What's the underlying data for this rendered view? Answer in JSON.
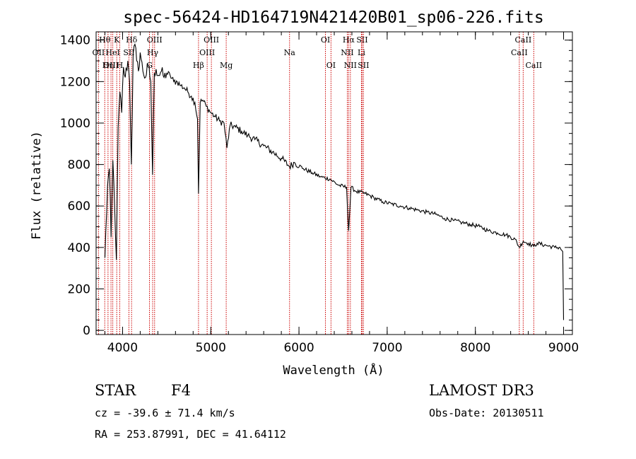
{
  "chart_data": {
    "type": "line",
    "title": "spec-56424-HD164719N421420B01_sp06-226.fits",
    "xlabel": "Wavelength (Å)",
    "ylabel": "Flux (relative)",
    "xlim": [
      3700,
      9100
    ],
    "ylim": [
      -20,
      1440
    ],
    "x_ticks": [
      4000,
      5000,
      6000,
      7000,
      8000,
      9000
    ],
    "y_ticks": [
      0,
      200,
      400,
      600,
      800,
      1000,
      1200,
      1400
    ],
    "x_minor_step": 200,
    "y_minor_step": 50,
    "series": [
      {
        "name": "flux",
        "x": [
          3800,
          3830,
          3850,
          3870,
          3890,
          3910,
          3930,
          3950,
          3970,
          3990,
          4010,
          4030,
          4060,
          4080,
          4100,
          4120,
          4140,
          4160,
          4180,
          4200,
          4230,
          4260,
          4290,
          4320,
          4340,
          4360,
          4380,
          4410,
          4440,
          4470,
          4500,
          4540,
          4580,
          4620,
          4660,
          4700,
          4740,
          4780,
          4820,
          4850,
          4861,
          4880,
          4910,
          4950,
          5000,
          5050,
          5100,
          5150,
          5183,
          5220,
          5280,
          5350,
          5420,
          5500,
          5600,
          5700,
          5800,
          5893,
          5950,
          6050,
          6150,
          6250,
          6350,
          6450,
          6540,
          6563,
          6590,
          6650,
          6750,
          6850,
          6950,
          7050,
          7150,
          7250,
          7350,
          7450,
          7550,
          7650,
          7750,
          7850,
          7950,
          8050,
          8150,
          8250,
          8350,
          8450,
          8498,
          8542,
          8600,
          8662,
          8700,
          8800,
          8900,
          8960,
          8990,
          9000
        ],
        "y": [
          350,
          700,
          780,
          450,
          820,
          600,
          340,
          980,
          1150,
          1050,
          1270,
          1220,
          1300,
          1200,
          800,
          1330,
          1380,
          1300,
          1250,
          1340,
          1250,
          1220,
          1280,
          1200,
          750,
          1240,
          1260,
          1230,
          1250,
          1220,
          1240,
          1230,
          1200,
          1200,
          1180,
          1170,
          1150,
          1130,
          1100,
          1020,
          660,
          1100,
          1110,
          1080,
          1050,
          1030,
          1010,
          1000,
          880,
          990,
          980,
          960,
          940,
          920,
          890,
          860,
          830,
          790,
          810,
          780,
          760,
          740,
          730,
          700,
          690,
          480,
          690,
          670,
          660,
          640,
          620,
          610,
          600,
          590,
          580,
          570,
          560,
          540,
          530,
          520,
          510,
          500,
          480,
          470,
          460,
          440,
          400,
          430,
          420,
          405,
          420,
          410,
          400,
          400,
          380,
          50
        ]
      }
    ],
    "lines": [
      {
        "name": "Hθ",
        "wavelength": 3798,
        "row": 0
      },
      {
        "name": "OII",
        "wavelength": 3727,
        "row": 1
      },
      {
        "name": "OIII",
        "wavelength": 3869,
        "row": 2
      },
      {
        "name": "Hη",
        "wavelength": 3835,
        "row": 2
      },
      {
        "name": "HeI",
        "wavelength": 3889,
        "row": 1
      },
      {
        "name": "K",
        "wavelength": 3934,
        "row": 0
      },
      {
        "name": "H",
        "wavelength": 3968,
        "row": 2
      },
      {
        "name": "SII",
        "wavelength": 4072,
        "row": 1
      },
      {
        "name": "Hδ",
        "wavelength": 4102,
        "row": 0
      },
      {
        "name": "G",
        "wavelength": 4305,
        "row": 2
      },
      {
        "name": "OIII",
        "wavelength": 4363,
        "row": 0
      },
      {
        "name": "Hγ",
        "wavelength": 4341,
        "row": 1
      },
      {
        "name": "Hβ",
        "wavelength": 4861,
        "row": 2
      },
      {
        "name": "OIII",
        "wavelength": 4959,
        "row": 1
      },
      {
        "name": "OIII",
        "wavelength": 5007,
        "row": 0
      },
      {
        "name": "Mg",
        "wavelength": 5175,
        "row": 2
      },
      {
        "name": "Na",
        "wavelength": 5893,
        "row": 1
      },
      {
        "name": "OI",
        "wavelength": 6300,
        "row": 0
      },
      {
        "name": "OI",
        "wavelength": 6363,
        "row": 2
      },
      {
        "name": "Hα",
        "wavelength": 6563,
        "row": 0
      },
      {
        "name": "NII",
        "wavelength": 6548,
        "row": 1
      },
      {
        "name": "NII",
        "wavelength": 6583,
        "row": 2
      },
      {
        "name": "SII",
        "wavelength": 6716,
        "row": 0
      },
      {
        "name": "Li",
        "wavelength": 6708,
        "row": 1
      },
      {
        "name": "SII",
        "wavelength": 6731,
        "row": 2
      },
      {
        "name": "CaII",
        "wavelength": 8542,
        "row": 0
      },
      {
        "name": "CaII",
        "wavelength": 8498,
        "row": 1
      },
      {
        "name": "CaII",
        "wavelength": 8662,
        "row": 2
      }
    ],
    "line_color": "#cc0000",
    "spectrum_color": "#000000"
  },
  "info": {
    "object_class": "STAR",
    "subclass": "F4",
    "survey": "LAMOST DR3",
    "cz": "cz = -39.6 ± 71.4 km/s",
    "obs_date": "Obs-Date: 20130511",
    "coords": "RA = 253.87991, DEC =  41.64112"
  }
}
